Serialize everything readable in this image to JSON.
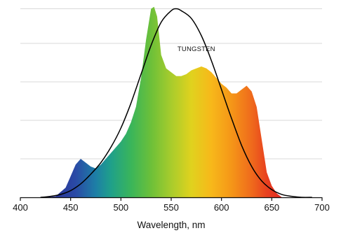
{
  "chart_data": {
    "type": "area",
    "xlabel": "Wavelength, nm",
    "ylabel": "",
    "title": "",
    "xlim": [
      400,
      700
    ],
    "ylim": [
      0,
      1
    ],
    "x_ticks": [
      400,
      450,
      500,
      550,
      600,
      650,
      700
    ],
    "grid": {
      "horizontal": true,
      "vertical": false,
      "lines_at": [
        0.2,
        0.4,
        0.6,
        0.8,
        0.98
      ]
    },
    "series": [
      {
        "kind": "spectrum-area",
        "fill": "wavelength-rainbow",
        "x": [
          425,
          435,
          445,
          450,
          455,
          460,
          465,
          470,
          475,
          480,
          485,
          490,
          495,
          500,
          505,
          510,
          515,
          520,
          525,
          530,
          533,
          536,
          540,
          545,
          550,
          555,
          560,
          565,
          570,
          575,
          580,
          585,
          590,
          595,
          600,
          605,
          610,
          615,
          620,
          625,
          630,
          635,
          640,
          645,
          650,
          655,
          660,
          665
        ],
        "y": [
          0.0,
          0.005,
          0.05,
          0.11,
          0.17,
          0.2,
          0.18,
          0.16,
          0.15,
          0.17,
          0.2,
          0.23,
          0.26,
          0.29,
          0.33,
          0.39,
          0.47,
          0.62,
          0.82,
          0.98,
          0.99,
          0.94,
          0.74,
          0.67,
          0.65,
          0.63,
          0.63,
          0.64,
          0.66,
          0.67,
          0.68,
          0.67,
          0.65,
          0.62,
          0.59,
          0.57,
          0.54,
          0.54,
          0.56,
          0.58,
          0.55,
          0.47,
          0.3,
          0.13,
          0.06,
          0.02,
          0.0,
          0.0
        ]
      },
      {
        "kind": "curve",
        "annotation": "TUNGSTEN",
        "color": "#000000",
        "x": [
          420,
          430,
          440,
          450,
          460,
          470,
          480,
          490,
          500,
          510,
          520,
          530,
          540,
          550,
          555,
          560,
          570,
          580,
          590,
          600,
          610,
          620,
          630,
          640,
          650,
          660,
          670,
          680,
          690
        ],
        "y": [
          0.0,
          0.005,
          0.015,
          0.035,
          0.07,
          0.12,
          0.18,
          0.26,
          0.36,
          0.49,
          0.64,
          0.79,
          0.91,
          0.97,
          0.98,
          0.97,
          0.93,
          0.84,
          0.71,
          0.56,
          0.41,
          0.27,
          0.16,
          0.085,
          0.04,
          0.015,
          0.005,
          0.0,
          0.0
        ]
      }
    ],
    "annotations": [
      {
        "text": "TUNGSTEN",
        "x": 575,
        "y": 0.76
      }
    ]
  }
}
